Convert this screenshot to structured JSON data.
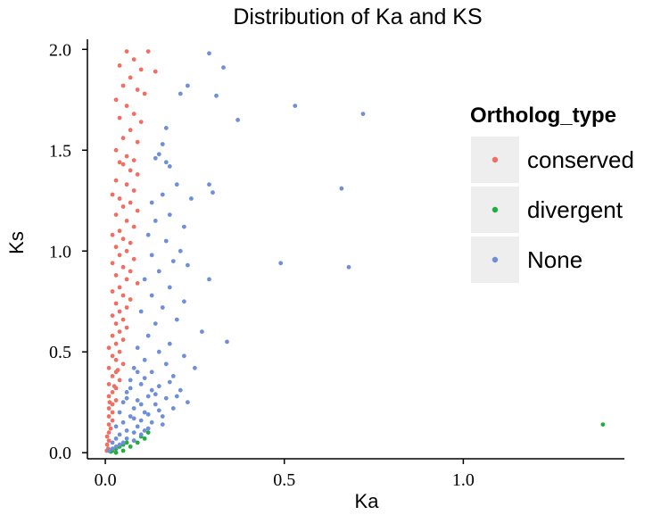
{
  "chart_data": {
    "type": "scatter",
    "title": "Distribution of Ka and KS",
    "xlabel": "Ka",
    "ylabel": "Ks",
    "xlim": [
      -0.05,
      1.45
    ],
    "ylim": [
      -0.03,
      2.05
    ],
    "x_ticks": [
      0.0,
      0.5,
      1.0
    ],
    "x_tick_labels": [
      "0.0",
      "0.5",
      "1.0"
    ],
    "y_ticks": [
      0.0,
      0.5,
      1.0,
      1.5,
      2.0
    ],
    "y_tick_labels": [
      "0.0",
      "0.5",
      "1.0",
      "1.5",
      "2.0"
    ],
    "legend": {
      "title": "Ortholog_type",
      "position": "right",
      "entries": [
        {
          "name": "conserved",
          "color": "#ee6f63"
        },
        {
          "name": "divergent",
          "color": "#22ad3e"
        },
        {
          "name": "None",
          "color": "#6f8fd6"
        }
      ]
    },
    "series": [
      {
        "name": "conserved",
        "color": "#ee6f63",
        "points": [
          [
            0.06,
            1.99
          ],
          [
            0.12,
            1.99
          ],
          [
            0.08,
            1.95
          ],
          [
            0.04,
            1.92
          ],
          [
            0.1,
            1.9
          ],
          [
            0.14,
            1.89
          ],
          [
            0.07,
            1.86
          ],
          [
            0.05,
            1.82
          ],
          [
            0.09,
            1.8
          ],
          [
            0.11,
            1.78
          ],
          [
            0.03,
            1.75
          ],
          [
            0.06,
            1.72
          ],
          [
            0.08,
            1.68
          ],
          [
            0.04,
            1.66
          ],
          [
            0.1,
            1.64
          ],
          [
            0.07,
            1.6
          ],
          [
            0.05,
            1.56
          ],
          [
            0.09,
            1.54
          ],
          [
            0.03,
            1.5
          ],
          [
            0.06,
            1.47
          ],
          [
            0.08,
            1.45
          ],
          [
            0.04,
            1.44
          ],
          [
            0.05,
            1.43
          ],
          [
            0.07,
            1.4
          ],
          [
            0.09,
            1.38
          ],
          [
            0.03,
            1.35
          ],
          [
            0.06,
            1.33
          ],
          [
            0.08,
            1.3
          ],
          [
            0.02,
            1.28
          ],
          [
            0.04,
            1.26
          ],
          [
            0.07,
            1.24
          ],
          [
            0.05,
            1.22
          ],
          [
            0.09,
            1.2
          ],
          [
            0.03,
            1.18
          ],
          [
            0.06,
            1.15
          ],
          [
            0.08,
            1.12
          ],
          [
            0.04,
            1.1
          ],
          [
            0.02,
            1.08
          ],
          [
            0.05,
            1.06
          ],
          [
            0.07,
            1.04
          ],
          [
            0.03,
            1.02
          ],
          [
            0.06,
            1.0
          ],
          [
            0.04,
            0.98
          ],
          [
            0.08,
            0.96
          ],
          [
            0.02,
            0.94
          ],
          [
            0.05,
            0.92
          ],
          [
            0.07,
            0.9
          ],
          [
            0.03,
            0.88
          ],
          [
            0.06,
            0.86
          ],
          [
            0.09,
            0.84
          ],
          [
            0.04,
            0.82
          ],
          [
            0.02,
            0.8
          ],
          [
            0.05,
            0.78
          ],
          [
            0.07,
            0.76
          ],
          [
            0.03,
            0.74
          ],
          [
            0.06,
            0.72
          ],
          [
            0.04,
            0.7
          ],
          [
            0.02,
            0.68
          ],
          [
            0.05,
            0.66
          ],
          [
            0.03,
            0.64
          ],
          [
            0.06,
            0.62
          ],
          [
            0.04,
            0.6
          ],
          [
            0.02,
            0.58
          ],
          [
            0.05,
            0.56
          ],
          [
            0.03,
            0.54
          ],
          [
            0.01,
            0.52
          ],
          [
            0.04,
            0.5
          ],
          [
            0.02,
            0.48
          ],
          [
            0.03,
            0.46
          ],
          [
            0.05,
            0.44
          ],
          [
            0.01,
            0.42
          ],
          [
            0.03,
            0.4
          ],
          [
            0.02,
            0.38
          ],
          [
            0.04,
            0.36
          ],
          [
            0.01,
            0.34
          ],
          [
            0.03,
            0.32
          ],
          [
            0.02,
            0.3
          ],
          [
            0.01,
            0.28
          ],
          [
            0.03,
            0.26
          ],
          [
            0.02,
            0.24
          ],
          [
            0.01,
            0.22
          ],
          [
            0.02,
            0.2
          ],
          [
            0.01,
            0.18
          ],
          [
            0.02,
            0.16
          ],
          [
            0.01,
            0.14
          ],
          [
            0.015,
            0.12
          ],
          [
            0.01,
            0.1
          ],
          [
            0.005,
            0.08
          ],
          [
            0.01,
            0.06
          ],
          [
            0.005,
            0.04
          ],
          [
            0.008,
            0.02
          ],
          [
            0.004,
            0.01
          ],
          [
            0.012,
            0.25
          ],
          [
            0.025,
            0.33
          ],
          [
            0.035,
            0.41
          ]
        ]
      },
      {
        "name": "divergent",
        "color": "#22ad3e",
        "points": [
          [
            1.39,
            0.14
          ],
          [
            0.12,
            0.1
          ],
          [
            0.1,
            0.08
          ],
          [
            0.08,
            0.06
          ],
          [
            0.06,
            0.05
          ],
          [
            0.05,
            0.04
          ],
          [
            0.04,
            0.03
          ],
          [
            0.03,
            0.02
          ],
          [
            0.02,
            0.01
          ],
          [
            0.07,
            0.03
          ],
          [
            0.09,
            0.05
          ],
          [
            0.11,
            0.07
          ],
          [
            0.03,
            0.0
          ],
          [
            0.05,
            0.01
          ],
          [
            0.015,
            0.005
          ]
        ]
      },
      {
        "name": "None",
        "color": "#6f8fd6",
        "points": [
          [
            0.29,
            1.98
          ],
          [
            0.33,
            1.91
          ],
          [
            0.23,
            1.82
          ],
          [
            0.31,
            1.77
          ],
          [
            0.21,
            1.78
          ],
          [
            0.37,
            1.65
          ],
          [
            0.53,
            1.72
          ],
          [
            0.72,
            1.68
          ],
          [
            0.17,
            1.61
          ],
          [
            0.16,
            1.53
          ],
          [
            0.15,
            1.48
          ],
          [
            0.17,
            1.44
          ],
          [
            0.18,
            1.42
          ],
          [
            0.14,
            1.46
          ],
          [
            0.2,
            1.33
          ],
          [
            0.29,
            1.33
          ],
          [
            0.3,
            1.29
          ],
          [
            0.24,
            1.26
          ],
          [
            0.16,
            1.28
          ],
          [
            0.13,
            1.24
          ],
          [
            0.66,
            1.31
          ],
          [
            0.18,
            1.18
          ],
          [
            0.14,
            1.15
          ],
          [
            0.22,
            1.12
          ],
          [
            0.12,
            1.08
          ],
          [
            0.17,
            1.05
          ],
          [
            0.21,
            1.0
          ],
          [
            0.13,
            0.98
          ],
          [
            0.19,
            0.95
          ],
          [
            0.23,
            0.93
          ],
          [
            0.49,
            0.94
          ],
          [
            0.68,
            0.92
          ],
          [
            0.15,
            0.9
          ],
          [
            0.11,
            0.86
          ],
          [
            0.29,
            0.86
          ],
          [
            0.18,
            0.82
          ],
          [
            0.13,
            0.78
          ],
          [
            0.22,
            0.75
          ],
          [
            0.16,
            0.72
          ],
          [
            0.1,
            0.7
          ],
          [
            0.2,
            0.66
          ],
          [
            0.14,
            0.64
          ],
          [
            0.27,
            0.6
          ],
          [
            0.12,
            0.58
          ],
          [
            0.34,
            0.55
          ],
          [
            0.18,
            0.54
          ],
          [
            0.09,
            0.52
          ],
          [
            0.15,
            0.5
          ],
          [
            0.22,
            0.48
          ],
          [
            0.11,
            0.46
          ],
          [
            0.17,
            0.44
          ],
          [
            0.08,
            0.42
          ],
          [
            0.25,
            0.42
          ],
          [
            0.13,
            0.4
          ],
          [
            0.19,
            0.38
          ],
          [
            0.07,
            0.36
          ],
          [
            0.1,
            0.34
          ],
          [
            0.15,
            0.33
          ],
          [
            0.21,
            0.31
          ],
          [
            0.06,
            0.3
          ],
          [
            0.12,
            0.28
          ],
          [
            0.17,
            0.27
          ],
          [
            0.09,
            0.26
          ],
          [
            0.05,
            0.25
          ],
          [
            0.14,
            0.24
          ],
          [
            0.19,
            0.22
          ],
          [
            0.08,
            0.22
          ],
          [
            0.11,
            0.2
          ],
          [
            0.04,
            0.2
          ],
          [
            0.16,
            0.18
          ],
          [
            0.07,
            0.18
          ],
          [
            0.1,
            0.16
          ],
          [
            0.13,
            0.15
          ],
          [
            0.05,
            0.15
          ],
          [
            0.09,
            0.13
          ],
          [
            0.03,
            0.13
          ],
          [
            0.12,
            0.12
          ],
          [
            0.06,
            0.11
          ],
          [
            0.08,
            0.1
          ],
          [
            0.04,
            0.09
          ],
          [
            0.1,
            0.09
          ],
          [
            0.03,
            0.07
          ],
          [
            0.06,
            0.07
          ],
          [
            0.08,
            0.06
          ],
          [
            0.02,
            0.05
          ],
          [
            0.05,
            0.05
          ],
          [
            0.04,
            0.04
          ],
          [
            0.03,
            0.03
          ],
          [
            0.02,
            0.02
          ],
          [
            0.01,
            0.01
          ],
          [
            0.07,
            0.32
          ],
          [
            0.09,
            0.4
          ],
          [
            0.11,
            0.37
          ],
          [
            0.13,
            0.31
          ],
          [
            0.06,
            0.27
          ],
          [
            0.18,
            0.35
          ],
          [
            0.2,
            0.28
          ],
          [
            0.23,
            0.25
          ],
          [
            0.15,
            0.21
          ],
          [
            0.12,
            0.19
          ],
          [
            0.08,
            0.17
          ],
          [
            0.14,
            0.29
          ],
          [
            0.1,
            0.24
          ],
          [
            0.16,
            0.14
          ],
          [
            0.11,
            0.11
          ]
        ]
      }
    ]
  }
}
